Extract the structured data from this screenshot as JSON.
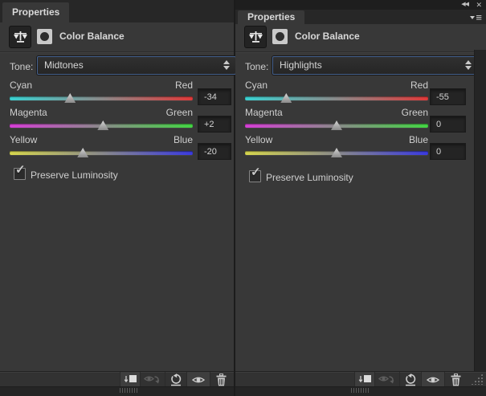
{
  "titlebar": {
    "collapse_icon": "◀◀",
    "close_icon": "✕",
    "menu_icon": "≡"
  },
  "slider_colors": {
    "cyan": "#3bd2d2",
    "red": "#e03a3a",
    "magenta": "#d63fd6",
    "green": "#43d643",
    "yellow": "#d6d64e",
    "blue": "#3a3ae0",
    "mid": "#8a8a8a"
  },
  "toolbar": {
    "buttons": [
      "clip-to-layer",
      "view-previous-state",
      "reset",
      "toggle-visibility",
      "delete"
    ]
  },
  "panels": [
    {
      "tab": "Properties",
      "title": "Color Balance",
      "tone": {
        "label": "Tone:",
        "value": "Midtones"
      },
      "sliders": [
        {
          "left_label": "Cyan",
          "right_label": "Red",
          "value": "-34",
          "gradient": "cyan,red"
        },
        {
          "left_label": "Magenta",
          "right_label": "Green",
          "value": "+2",
          "gradient": "magenta,green"
        },
        {
          "left_label": "Yellow",
          "right_label": "Blue",
          "value": "-20",
          "gradient": "yellow,blue"
        }
      ],
      "checkbox": {
        "label": "Preserve Luminosity",
        "checked": true,
        "glyph": "✓"
      }
    },
    {
      "tab": "Properties",
      "title": "Color Balance",
      "tone": {
        "label": "Tone:",
        "value": "Highlights"
      },
      "sliders": [
        {
          "left_label": "Cyan",
          "right_label": "Red",
          "value": "-55",
          "gradient": "cyan,red"
        },
        {
          "left_label": "Magenta",
          "right_label": "Green",
          "value": "0",
          "gradient": "magenta,green"
        },
        {
          "left_label": "Yellow",
          "right_label": "Blue",
          "value": "0",
          "gradient": "yellow,blue"
        }
      ],
      "checkbox": {
        "label": "Preserve Luminosity",
        "checked": true,
        "glyph": "✓"
      }
    }
  ]
}
